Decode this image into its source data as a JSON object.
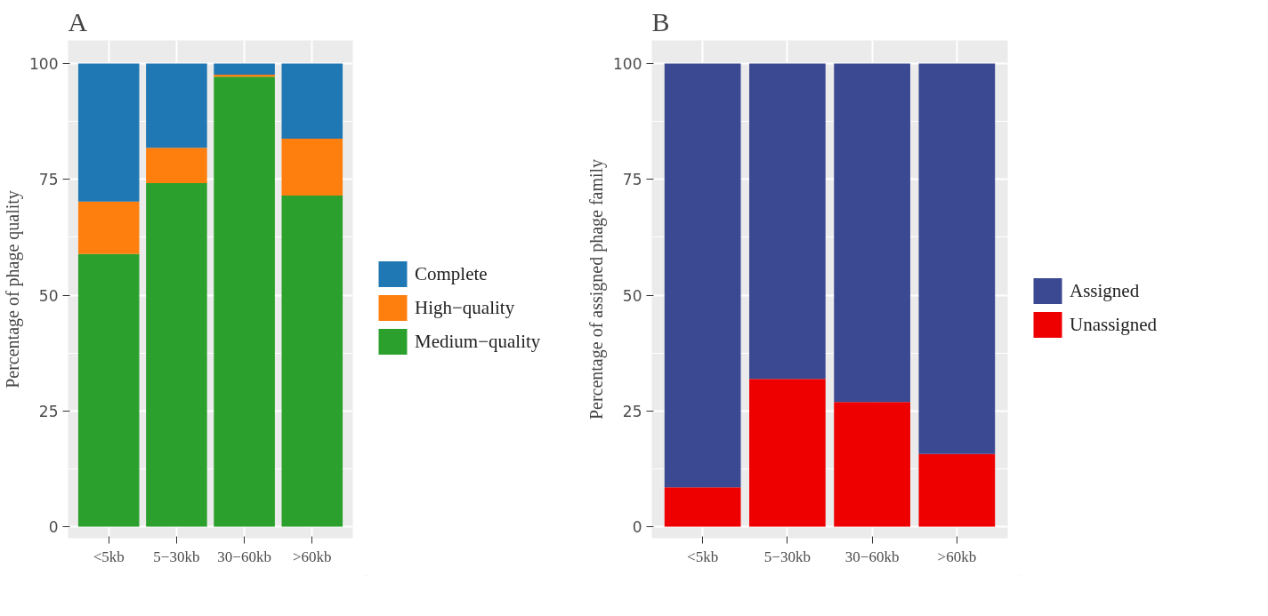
{
  "chart_data": [
    {
      "type": "bar",
      "title": "A",
      "ylabel": "Percentage of phage quality",
      "categories": [
        "<5kb",
        "5−30kb",
        "30−60kb",
        ">60kb"
      ],
      "stacked": true,
      "ylim": [
        -2.5,
        105
      ],
      "yticks": [
        0,
        25,
        50,
        75,
        100
      ],
      "grid": true,
      "legend": "right",
      "series": [
        {
          "name": "Medium−quality",
          "color": "#2ca02c",
          "values": [
            58.9,
            74.2,
            97.2,
            71.5
          ]
        },
        {
          "name": "High−quality",
          "color": "#ff7f0e",
          "values": [
            11.3,
            7.6,
            0.4,
            12.3
          ]
        },
        {
          "name": "Complete",
          "color": "#1f77b4",
          "values": [
            29.8,
            18.2,
            2.4,
            16.2
          ]
        }
      ]
    },
    {
      "type": "bar",
      "title": "B",
      "ylabel": "Percentage of assigned phage family",
      "categories": [
        "<5kb",
        "5−30kb",
        "30−60kb",
        ">60kb"
      ],
      "stacked": true,
      "ylim": [
        -2.5,
        105
      ],
      "yticks": [
        0,
        25,
        50,
        75,
        100
      ],
      "grid": true,
      "legend": "right",
      "series": [
        {
          "name": "Unassigned",
          "color": "#ee0000",
          "values": [
            8.5,
            31.9,
            26.9,
            15.7
          ]
        },
        {
          "name": "Assigned",
          "color": "#3b4992",
          "values": [
            91.5,
            68.1,
            73.1,
            84.3
          ]
        }
      ]
    }
  ]
}
